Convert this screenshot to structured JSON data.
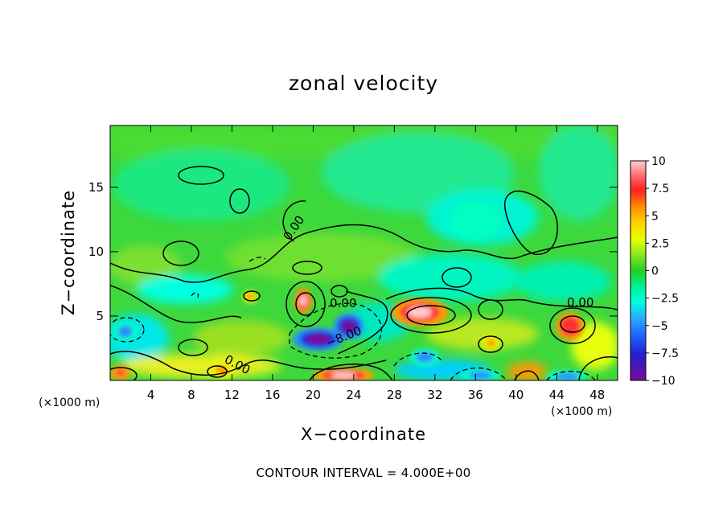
{
  "chart_data": {
    "type": "heatmap",
    "title": "zonal velocity",
    "xlabel": "X−coordinate",
    "ylabel": "Z−coordinate",
    "x_unit_left": "(×1000 m)",
    "x_unit_right": "(×1000 m)",
    "xlim": [
      0,
      50
    ],
    "ylim": [
      0,
      19.8
    ],
    "x_ticks": [
      4,
      8,
      12,
      16,
      20,
      24,
      28,
      32,
      36,
      40,
      44,
      48
    ],
    "y_ticks": [
      5,
      10,
      15
    ],
    "colorbar": {
      "range": [
        -10,
        10
      ],
      "ticks": [
        10,
        7.5,
        5,
        2.5,
        0,
        -2.5,
        -5,
        -7.5,
        -10
      ],
      "tick_labels": [
        "10",
        "7.5",
        "5",
        "2.5",
        "0",
        "−2.5",
        "−5",
        "−7.5",
        "−10"
      ],
      "colors": [
        "#ffc8c8",
        "#ff3030",
        "#ff9a00",
        "#e8ff00",
        "#22d022",
        "#00ffc0",
        "#2a8cff",
        "#2020d0",
        "#7a0a9a"
      ]
    },
    "contour_interval_text": "CONTOUR INTERVAL = 4.000E+00",
    "contour_labels": [
      "0.00",
      "0.00",
      "0.00",
      "−8.00",
      "0.00"
    ],
    "features": [
      {
        "x": 30.5,
        "z": 5.3,
        "value": 9,
        "sx": 2.8,
        "sz": 1.1
      },
      {
        "x": 45.3,
        "z": 4.2,
        "value": 8.5,
        "sx": 1.4,
        "sz": 1.1
      },
      {
        "x": 19.0,
        "z": 6.2,
        "value": 9,
        "sx": 0.9,
        "sz": 1.0
      },
      {
        "x": 23.0,
        "z": 0.4,
        "value": 10,
        "sx": 3.0,
        "sz": 0.6
      },
      {
        "x": 1.0,
        "z": 0.6,
        "value": 8,
        "sx": 1.0,
        "sz": 0.6
      },
      {
        "x": 37.5,
        "z": 2.9,
        "value": 6,
        "sx": 0.8,
        "sz": 0.6
      },
      {
        "x": 11.0,
        "z": 0.8,
        "value": 5,
        "sx": 1.2,
        "sz": 0.6
      },
      {
        "x": 13.8,
        "z": 6.5,
        "value": 5,
        "sx": 0.7,
        "sz": 0.5
      },
      {
        "x": 20.5,
        "z": 3.2,
        "value": -9,
        "sx": 2.5,
        "sz": 0.9
      },
      {
        "x": 23.5,
        "z": 4.2,
        "value": -9,
        "sx": 1.5,
        "sz": 1.0
      },
      {
        "x": 1.5,
        "z": 3.8,
        "value": -5,
        "sx": 1.2,
        "sz": 0.8
      },
      {
        "x": 36.5,
        "z": 0.4,
        "value": -6,
        "sx": 2.0,
        "sz": 0.5
      },
      {
        "x": 45.0,
        "z": 0.3,
        "value": -6,
        "sx": 2.0,
        "sz": 0.5
      },
      {
        "x": 31.0,
        "z": 1.8,
        "value": -4,
        "sx": 1.5,
        "sz": 0.7
      },
      {
        "x": 36.0,
        "z": 12.4,
        "value": -3,
        "sx": 2.5,
        "sz": 1.5
      }
    ]
  }
}
